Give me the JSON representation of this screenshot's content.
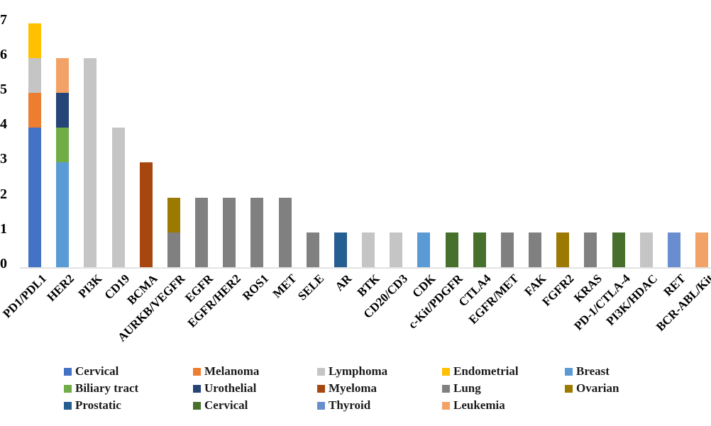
{
  "chart_data": {
    "type": "bar",
    "stacked": true,
    "title": "",
    "xlabel": "",
    "ylabel": "",
    "ylim": [
      0,
      7
    ],
    "yticks": [
      0,
      1,
      2,
      3,
      4,
      5,
      6,
      7
    ],
    "grid": false,
    "legend_position": "bottom",
    "legend": [
      {
        "id": "cervical",
        "label": "Cervical",
        "color": "#4472C4"
      },
      {
        "id": "melanoma",
        "label": "Melanoma",
        "color": "#ED7D31"
      },
      {
        "id": "lymphoma",
        "label": "Lymphoma",
        "color": "#C5C5C5"
      },
      {
        "id": "endometrial",
        "label": "Endometrial",
        "color": "#FFC000"
      },
      {
        "id": "breast",
        "label": "Breast",
        "color": "#5B9BD5"
      },
      {
        "id": "biliary-tract",
        "label": "Biliary tract",
        "color": "#70AD47"
      },
      {
        "id": "urothelial",
        "label": "Urothelial",
        "color": "#264478"
      },
      {
        "id": "myeloma",
        "label": "Myeloma",
        "color": "#A5470F"
      },
      {
        "id": "lung",
        "label": "Lung",
        "color": "#808080"
      },
      {
        "id": "ovarian",
        "label": "Ovarian",
        "color": "#9C7A00"
      },
      {
        "id": "prostatic",
        "label": "Prostatic",
        "color": "#255E91"
      },
      {
        "id": "cervical-2",
        "label": "Cervical",
        "color": "#47702C"
      },
      {
        "id": "thyroid",
        "label": "Thyroid",
        "color": "#698ED0"
      },
      {
        "id": "leukemia",
        "label": "Leukemia",
        "color": "#F2A266"
      }
    ],
    "categories": [
      "PD1/PDL1",
      "HER2",
      "PI3K",
      "CD19",
      "BCMA",
      "AURKB/VEGFR",
      "EGFR",
      "EGFR/HER2",
      "ROS1",
      "MET",
      "SELE",
      "AR",
      "BTK",
      "CD20/CD3",
      "CDK",
      "c-Kit/PDGFR",
      "CTLA4",
      "EGFR/MET",
      "FAK",
      "FGFR2",
      "KRAS",
      "PD-1/CTLA-4",
      "PI3K/HDAC",
      "RET",
      "BCR-ABL/Kit"
    ],
    "bars": [
      {
        "category": "PD1/PDL1",
        "total": 7,
        "segments": [
          {
            "series": "cervical",
            "value": 4
          },
          {
            "series": "melanoma",
            "value": 1
          },
          {
            "series": "lymphoma",
            "value": 1
          },
          {
            "series": "endometrial",
            "value": 1
          }
        ]
      },
      {
        "category": "HER2",
        "total": 6,
        "segments": [
          {
            "series": "breast",
            "value": 3
          },
          {
            "series": "biliary-tract",
            "value": 1
          },
          {
            "series": "urothelial",
            "value": 1
          },
          {
            "series": "leukemia",
            "value": 1
          }
        ]
      },
      {
        "category": "PI3K",
        "total": 6,
        "segments": [
          {
            "series": "lymphoma",
            "value": 6
          }
        ]
      },
      {
        "category": "CD19",
        "total": 4,
        "segments": [
          {
            "series": "lymphoma",
            "value": 4
          }
        ]
      },
      {
        "category": "BCMA",
        "total": 3,
        "segments": [
          {
            "series": "myeloma",
            "value": 3
          }
        ]
      },
      {
        "category": "AURKB/VEGFR",
        "total": 2,
        "segments": [
          {
            "series": "lung",
            "value": 1
          },
          {
            "series": "ovarian",
            "value": 1
          }
        ]
      },
      {
        "category": "EGFR",
        "total": 2,
        "segments": [
          {
            "series": "lung",
            "value": 2
          }
        ]
      },
      {
        "category": "EGFR/HER2",
        "total": 2,
        "segments": [
          {
            "series": "lung",
            "value": 2
          }
        ]
      },
      {
        "category": "ROS1",
        "total": 2,
        "segments": [
          {
            "series": "lung",
            "value": 2
          }
        ]
      },
      {
        "category": "MET",
        "total": 2,
        "segments": [
          {
            "series": "lung",
            "value": 2
          }
        ]
      },
      {
        "category": "SELE",
        "total": 1,
        "segments": [
          {
            "series": "lung",
            "value": 1
          }
        ]
      },
      {
        "category": "AR",
        "total": 1,
        "segments": [
          {
            "series": "prostatic",
            "value": 1
          }
        ]
      },
      {
        "category": "BTK",
        "total": 1,
        "segments": [
          {
            "series": "lymphoma",
            "value": 1
          }
        ]
      },
      {
        "category": "CD20/CD3",
        "total": 1,
        "segments": [
          {
            "series": "lymphoma",
            "value": 1
          }
        ]
      },
      {
        "category": "CDK",
        "total": 1,
        "segments": [
          {
            "series": "breast",
            "value": 1
          }
        ]
      },
      {
        "category": "c-Kit/PDGFR",
        "total": 1,
        "segments": [
          {
            "series": "cervical-2",
            "value": 1
          }
        ]
      },
      {
        "category": "CTLA4",
        "total": 1,
        "segments": [
          {
            "series": "cervical-2",
            "value": 1
          }
        ]
      },
      {
        "category": "EGFR/MET",
        "total": 1,
        "segments": [
          {
            "series": "lung",
            "value": 1
          }
        ]
      },
      {
        "category": "FAK",
        "total": 1,
        "segments": [
          {
            "series": "lung",
            "value": 1
          }
        ]
      },
      {
        "category": "FGFR2",
        "total": 1,
        "segments": [
          {
            "series": "ovarian",
            "value": 1
          }
        ]
      },
      {
        "category": "KRAS",
        "total": 1,
        "segments": [
          {
            "series": "lung",
            "value": 1
          }
        ]
      },
      {
        "category": "PD-1/CTLA-4",
        "total": 1,
        "segments": [
          {
            "series": "cervical-2",
            "value": 1
          }
        ]
      },
      {
        "category": "PI3K/HDAC",
        "total": 1,
        "segments": [
          {
            "series": "lymphoma",
            "value": 1
          }
        ]
      },
      {
        "category": "RET",
        "total": 1,
        "segments": [
          {
            "series": "thyroid",
            "value": 1
          }
        ]
      },
      {
        "category": "BCR-ABL/Kit",
        "total": 1,
        "segments": [
          {
            "series": "leukemia",
            "value": 1
          }
        ]
      }
    ]
  }
}
